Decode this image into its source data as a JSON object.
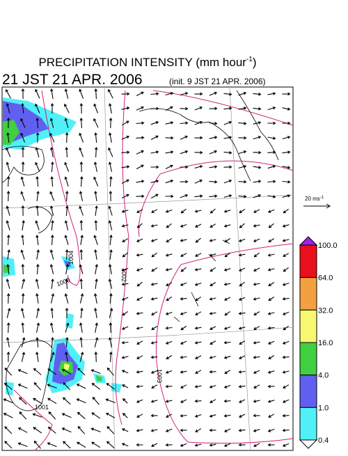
{
  "title": {
    "text": "PRECIPITATION INTENSITY (mm hour",
    "superscript": "-1",
    "close": ")"
  },
  "valid_time": "21 JST 21 APR. 2006",
  "init_time": "(init. 9 JST 21 APR. 2006)",
  "reference_vector": {
    "label": "20 ms",
    "superscript": "-1"
  },
  "colorbar": {
    "labels": [
      "100.0",
      "64.0",
      "32.0",
      "16.0",
      "4.0",
      "1.0",
      "0.4"
    ],
    "colors": [
      "#a020f0",
      "#e8101a",
      "#f5a040",
      "#f8f870",
      "#40d040",
      "#6060f0",
      "#50f0f8",
      "#ffffff"
    ]
  },
  "isobar_labels": [
    "1004",
    "1000",
    "1002",
    "1003",
    "1001"
  ]
}
